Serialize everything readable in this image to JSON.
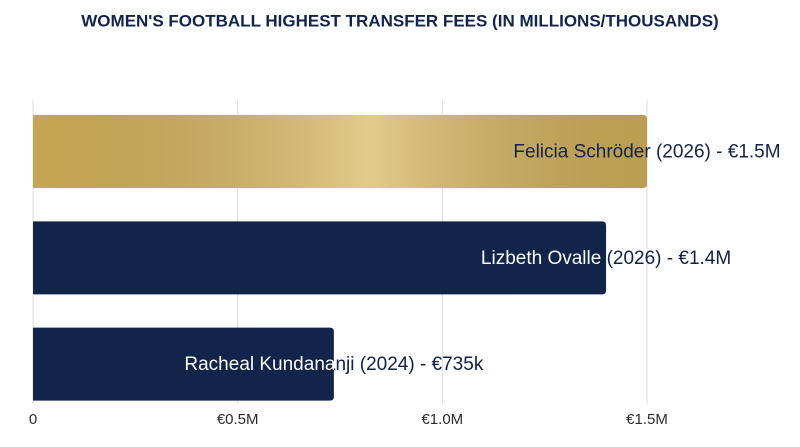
{
  "chart_data": {
    "type": "hbar",
    "title": "WOMEN'S FOOTBALL HIGHEST TRANSFER FEES (IN MILLIONS/THOUSANDS)",
    "values": [
      1.5,
      1.4,
      0.735
    ],
    "value_labels": [
      "Felicia Schröder (2026) - €1.5M",
      "Lizbeth Ovalle  (2026) - €1.4M",
      "Racheal Kundananji (2024) - €735k"
    ],
    "colors": [
      "#d6b45a",
      "#12244a",
      "#12244a"
    ],
    "xlim": [
      0,
      1.5
    ],
    "xticks": [
      0,
      {
        "value": 0.5,
        "label": "€0.5M"
      },
      {
        "value": 1.0,
        "label": "€1.0M"
      },
      {
        "value": 1.5,
        "label": "€1.5M"
      }
    ],
    "grid": true
  }
}
